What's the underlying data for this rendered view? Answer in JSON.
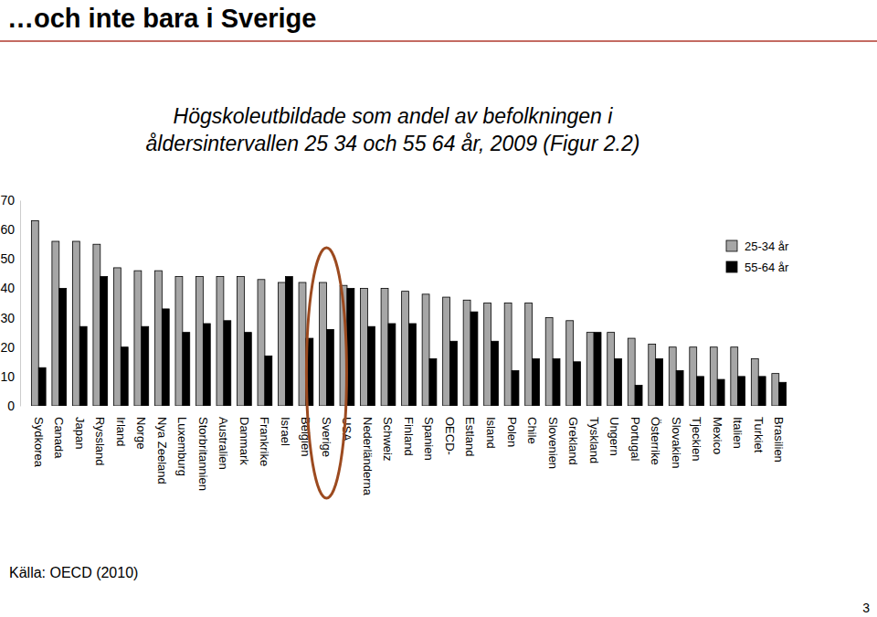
{
  "heading": "…och inte bara i Sverige",
  "chart_data": {
    "type": "bar",
    "title": "Högskoleutbildade som andel av befolkningen i\nåldersintervallen 25 34 och 55 64 år, 2009 (Figur 2.2)",
    "categories": [
      "Sydkorea",
      "Canada",
      "Japan",
      "Ryssland",
      "Irland",
      "Norge",
      "Nya Zeeland",
      "Luxemburg",
      "Storbritannien",
      "Australien",
      "Danmark",
      "Frankrike",
      "Israel",
      "Belgien",
      "Sverige",
      "USA",
      "Nederländerna",
      "Schweiz",
      "Finland",
      "Spanien",
      "OECD-",
      "Estland",
      "Island",
      "Polen",
      "Chile",
      "Slovenien",
      "Grekland",
      "Tyskland",
      "Ungern",
      "Portugal",
      "Österrike",
      "Slovakien",
      "Tjeckien",
      "Mexico",
      "Italien",
      "Turkiet",
      "Brasilien"
    ],
    "series": [
      {
        "name": "25-34 år",
        "color": "#a6a6a6",
        "values": [
          63,
          56,
          56,
          55,
          47,
          46,
          46,
          44,
          44,
          44,
          44,
          43,
          42,
          42,
          42,
          41,
          40,
          40,
          39,
          38,
          37,
          36,
          35,
          35,
          35,
          30,
          29,
          25,
          25,
          23,
          21,
          20,
          20,
          20,
          20,
          16,
          11
        ]
      },
      {
        "name": "55-64 år",
        "color": "#000000",
        "values": [
          13,
          40,
          27,
          44,
          20,
          27,
          33,
          25,
          28,
          29,
          25,
          17,
          44,
          23,
          26,
          40,
          27,
          28,
          28,
          16,
          22,
          32,
          22,
          12,
          16,
          16,
          15,
          25,
          16,
          7,
          16,
          12,
          10,
          9,
          10,
          10,
          8
        ]
      }
    ],
    "ylim": [
      0,
      70
    ],
    "yticks": [
      0,
      10,
      20,
      30,
      40,
      50,
      60,
      70
    ],
    "grid": false,
    "legend": "upper right"
  },
  "source": "Källa: OECD (2010)",
  "page": 3
}
